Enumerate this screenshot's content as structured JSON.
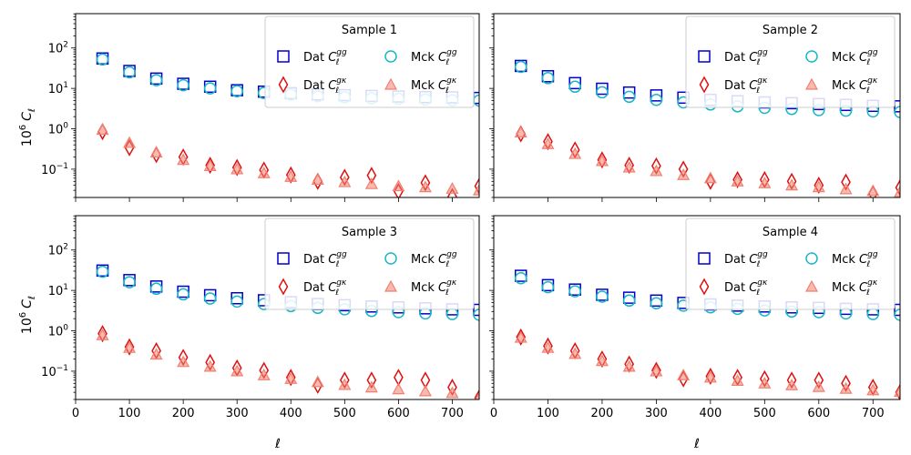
{
  "figure": {
    "ylabel_text": "10",
    "ylabel_exp": "6",
    "ylabel_var": "C",
    "ylabel_sub": "ℓ",
    "xlabel": "ℓ"
  },
  "axes": {
    "xlim": [
      0,
      750
    ],
    "ylim_log10": [
      -1.7,
      2.85
    ],
    "xticks": [
      0,
      100,
      200,
      300,
      400,
      500,
      600,
      700
    ],
    "yticks": [
      {
        "exp": -1,
        "label": "10",
        "label_exp": "−1"
      },
      {
        "exp": 0,
        "label": "10",
        "label_exp": "0"
      },
      {
        "exp": 1,
        "label": "10",
        "label_exp": "1"
      },
      {
        "exp": 2,
        "label": "10",
        "label_exp": "2"
      }
    ]
  },
  "legend_entries": [
    {
      "key": "dat_gg",
      "prefix": "Dat",
      "var": "C",
      "sub": "ℓ",
      "sup": "gg",
      "marker": "square",
      "color": "#0000cc"
    },
    {
      "key": "mck_gg",
      "prefix": "Mck",
      "var": "C",
      "sub": "ℓ",
      "sup": "gg",
      "marker": "circle",
      "color": "#17b8c4"
    },
    {
      "key": "dat_gk",
      "prefix": "Dat",
      "var": "C",
      "sub": "ℓ",
      "sup": "gκ",
      "marker": "diamond",
      "color": "#dd1111"
    },
    {
      "key": "mck_gk",
      "prefix": "Mck",
      "var": "C",
      "sub": "ℓ",
      "sup": "gκ",
      "marker": "triangle",
      "color": "#f08070"
    }
  ],
  "chart_data": [
    {
      "type": "scatter",
      "title": "Sample 1",
      "x": [
        50,
        100,
        150,
        200,
        250,
        300,
        350,
        400,
        450,
        500,
        550,
        600,
        650,
        700,
        750
      ],
      "series": [
        {
          "name": "Dat C_ℓ^gg",
          "values": [
            55,
            27,
            17.5,
            13,
            11,
            9,
            8.3,
            7.6,
            7.1,
            6.8,
            6.5,
            6.3,
            6.1,
            6.0,
            5.8
          ]
        },
        {
          "name": "Mck C_ℓ^gg",
          "values": [
            52,
            25,
            16,
            12,
            10,
            8.5,
            7.7,
            7.0,
            6.4,
            6.0,
            5.7,
            5.5,
            5.3,
            5.1,
            5.0
          ]
        },
        {
          "name": "Dat C_ℓ^gκ",
          "values": [
            0.85,
            0.34,
            0.23,
            0.2,
            0.125,
            0.11,
            0.095,
            0.072,
            0.05,
            0.063,
            0.07,
            0.028,
            0.046,
            0.021,
            0.038
          ]
        },
        {
          "name": "Mck C_ℓ^gκ",
          "values": [
            0.95,
            0.45,
            0.26,
            0.17,
            0.12,
            0.1,
            0.08,
            0.065,
            0.055,
            0.048,
            0.043,
            0.038,
            0.036,
            0.033,
            0.03
          ]
        }
      ]
    },
    {
      "type": "scatter",
      "title": "Sample 2",
      "x": [
        50,
        100,
        150,
        200,
        250,
        300,
        350,
        400,
        450,
        500,
        550,
        600,
        650,
        700,
        750
      ],
      "series": [
        {
          "name": "Dat C_ℓ^gg",
          "values": [
            36,
            20,
            13.5,
            9.8,
            7.9,
            6.7,
            5.9,
            5.2,
            4.8,
            4.5,
            4.3,
            4.1,
            3.9,
            3.7,
            3.6
          ]
        },
        {
          "name": "Mck C_ℓ^gg",
          "values": [
            34,
            18,
            11,
            8.0,
            6.2,
            5.2,
            4.5,
            4.0,
            3.6,
            3.3,
            3.1,
            2.9,
            2.8,
            2.7,
            2.6
          ]
        },
        {
          "name": "Dat C_ℓ^gκ",
          "values": [
            0.75,
            0.48,
            0.3,
            0.17,
            0.125,
            0.12,
            0.1,
            0.05,
            0.055,
            0.055,
            0.05,
            0.04,
            0.048,
            0.025,
            0.035
          ]
        },
        {
          "name": "Mck C_ℓ^gκ",
          "values": [
            0.82,
            0.42,
            0.24,
            0.16,
            0.11,
            0.09,
            0.072,
            0.06,
            0.05,
            0.045,
            0.04,
            0.036,
            0.032,
            0.029,
            0.027
          ]
        }
      ]
    },
    {
      "type": "scatter",
      "title": "Sample 3",
      "x": [
        50,
        100,
        150,
        200,
        250,
        300,
        350,
        400,
        450,
        500,
        550,
        600,
        650,
        700,
        750
      ],
      "series": [
        {
          "name": "Dat C_ℓ^gg",
          "values": [
            31,
            18,
            12.5,
            9.3,
            7.6,
            6.4,
            5.7,
            5.1,
            4.6,
            4.3,
            4.0,
            3.8,
            3.6,
            3.4,
            3.3
          ]
        },
        {
          "name": "Mck C_ℓ^gg",
          "values": [
            29,
            16,
            11,
            8.0,
            6.3,
            5.3,
            4.6,
            4.1,
            3.7,
            3.4,
            3.1,
            2.9,
            2.7,
            2.6,
            2.5
          ]
        },
        {
          "name": "Dat C_ℓ^gκ",
          "values": [
            0.85,
            0.4,
            0.32,
            0.22,
            0.165,
            0.12,
            0.105,
            0.07,
            0.045,
            0.06,
            0.06,
            0.07,
            0.06,
            0.04,
            0.022
          ]
        },
        {
          "name": "Mck C_ℓ^gκ",
          "values": [
            0.78,
            0.38,
            0.26,
            0.17,
            0.13,
            0.1,
            0.08,
            0.065,
            0.054,
            0.046,
            0.04,
            0.036,
            0.032,
            0.029,
            0.021
          ]
        }
      ]
    },
    {
      "type": "scatter",
      "title": "Sample 4",
      "x": [
        50,
        100,
        150,
        200,
        250,
        300,
        350,
        400,
        450,
        500,
        550,
        600,
        650,
        700,
        750
      ],
      "series": [
        {
          "name": "Dat C_ℓ^gg",
          "values": [
            23,
            13.5,
            10.5,
            7.8,
            6.6,
            5.6,
            4.9,
            4.5,
            4.2,
            4.0,
            3.8,
            3.7,
            3.5,
            3.4,
            3.3
          ]
        },
        {
          "name": "Mck C_ℓ^gg",
          "values": [
            20,
            12,
            9.5,
            7.0,
            5.6,
            4.8,
            4.2,
            3.8,
            3.5,
            3.2,
            3.0,
            2.9,
            2.7,
            2.6,
            2.5
          ]
        },
        {
          "name": "Dat C_ℓ^gκ",
          "values": [
            0.7,
            0.42,
            0.32,
            0.2,
            0.15,
            0.105,
            0.065,
            0.075,
            0.07,
            0.065,
            0.06,
            0.06,
            0.05,
            0.04,
            0.03
          ]
        },
        {
          "name": "Mck C_ℓ^gκ",
          "values": [
            0.68,
            0.38,
            0.27,
            0.18,
            0.13,
            0.1,
            0.08,
            0.07,
            0.058,
            0.05,
            0.045,
            0.041,
            0.037,
            0.034,
            0.031
          ]
        }
      ]
    }
  ]
}
